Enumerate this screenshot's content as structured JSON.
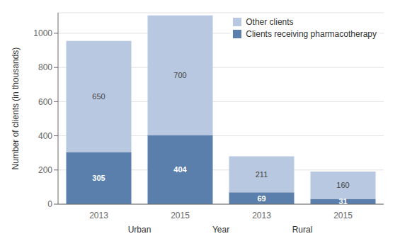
{
  "chart_data": {
    "type": "bar",
    "stacked": true,
    "categories": [
      "2013",
      "2015",
      "2013",
      "2015"
    ],
    "series": [
      {
        "name": "Clients receiving pharmacotherapy",
        "color": "#5b7fad",
        "values": [
          305,
          404,
          69,
          31
        ]
      },
      {
        "name": "Other clients",
        "color": "#b8c8e0",
        "values": [
          650,
          700,
          211,
          160
        ]
      }
    ],
    "xlabel": "Year",
    "ylabel": "Number of clients (in thousands)",
    "annotations": [
      "Urban",
      "Rural"
    ],
    "ylim": [
      0,
      1120
    ],
    "yticks": [
      0,
      200,
      400,
      600,
      800,
      1000
    ],
    "grid": true,
    "legend": "upper right",
    "data_labels": true
  }
}
